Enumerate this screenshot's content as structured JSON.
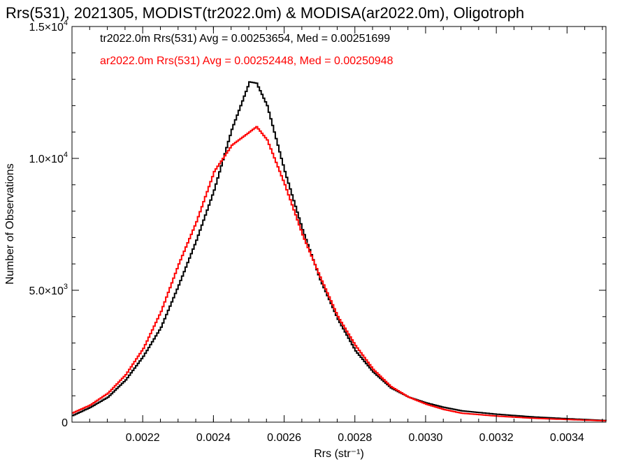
{
  "chart_data": {
    "type": "line",
    "title": "Rrs(531), 2021305, MODIST(tr2022.0m) & MODISA(ar2022.0m), Oligotroph",
    "xlabel": "Rrs (str⁻¹)",
    "ylabel": "Number of Observations",
    "xlim": [
      0.002,
      0.00351
    ],
    "ylim": [
      0,
      15000
    ],
    "x_ticks": [
      {
        "value": 0.0022,
        "label": "0.0022"
      },
      {
        "value": 0.0024,
        "label": "0.0024"
      },
      {
        "value": 0.0026,
        "label": "0.0026"
      },
      {
        "value": 0.0028,
        "label": "0.0028"
      },
      {
        "value": 0.003,
        "label": "0.0030"
      },
      {
        "value": 0.0032,
        "label": "0.0032"
      },
      {
        "value": 0.0034,
        "label": "0.0034"
      }
    ],
    "y_ticks": [
      {
        "value": 0,
        "label": "0",
        "mant": "0",
        "exp": ""
      },
      {
        "value": 5000,
        "label": "5.0×10³",
        "mant": "5.0×10",
        "exp": "3"
      },
      {
        "value": 10000,
        "label": "1.0×10⁴",
        "mant": "1.0×10",
        "exp": "4"
      },
      {
        "value": 15000,
        "label": "1.5×10⁴",
        "mant": "1.5×10",
        "exp": "4"
      }
    ],
    "series": [
      {
        "name": "tr2022.0m",
        "color": "#000000",
        "stat_text": "tr2022.0m Rrs(531) Avg = 0.00253654, Med = 0.00251699",
        "x": [
          0.002,
          0.00205,
          0.0021,
          0.00215,
          0.0022,
          0.00225,
          0.0023,
          0.00235,
          0.0024,
          0.00245,
          0.0025,
          0.00252,
          0.00255,
          0.0026,
          0.00265,
          0.0027,
          0.00275,
          0.0028,
          0.00285,
          0.0029,
          0.00295,
          0.003,
          0.00305,
          0.0031,
          0.0032,
          0.0033,
          0.0034,
          0.00351
        ],
        "y": [
          250,
          560,
          950,
          1600,
          2500,
          3600,
          5200,
          6900,
          8800,
          11100,
          12900,
          12850,
          12000,
          9500,
          7300,
          5400,
          3900,
          2700,
          1900,
          1300,
          950,
          730,
          560,
          430,
          300,
          200,
          130,
          60
        ]
      },
      {
        "name": "ar2022.0m",
        "color": "#ff0000",
        "stat_text": "ar2022.0m Rrs(531) Avg = 0.00252448, Med = 0.00250948",
        "x": [
          0.002,
          0.00205,
          0.0021,
          0.00215,
          0.0022,
          0.00225,
          0.0023,
          0.00235,
          0.0024,
          0.00245,
          0.0025,
          0.00252,
          0.00255,
          0.0026,
          0.00265,
          0.0027,
          0.00275,
          0.0028,
          0.00285,
          0.0029,
          0.00295,
          0.003,
          0.00305,
          0.0031,
          0.0032,
          0.0033,
          0.0034,
          0.00351
        ],
        "y": [
          350,
          650,
          1100,
          1800,
          2800,
          4200,
          6000,
          7600,
          9500,
          10500,
          11000,
          11200,
          10700,
          9000,
          7100,
          5500,
          4000,
          2900,
          2000,
          1350,
          950,
          680,
          480,
          340,
          230,
          150,
          100,
          50
        ]
      }
    ]
  }
}
